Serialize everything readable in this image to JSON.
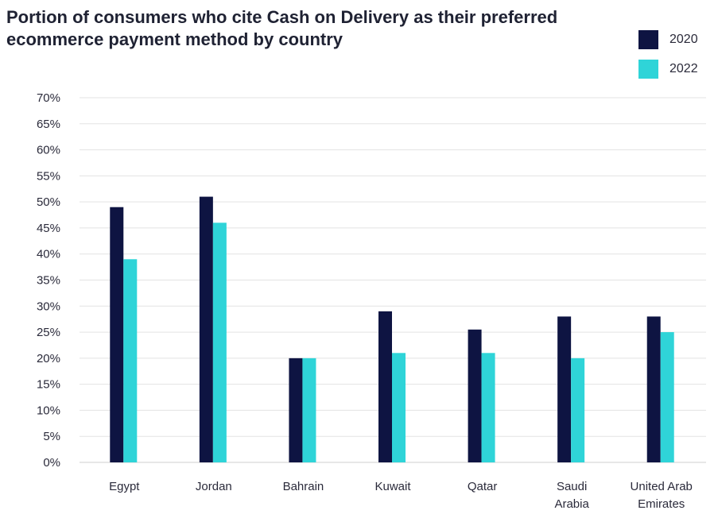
{
  "title_lines": [
    "Portion of consumers who cite Cash on Delivery as their preferred",
    "ecommerce payment method by country"
  ],
  "colors": {
    "2020": "#0e1442",
    "2022": "#2fd4d8",
    "grid": "#e3e3e3"
  },
  "chart_data": {
    "type": "bar",
    "title": "Portion of consumers who cite Cash on Delivery as their preferred ecommerce payment method by country",
    "categories": [
      "Egypt",
      "Jordan",
      "Bahrain",
      "Kuwait",
      "Qatar",
      "Saudi Arabia",
      "United Arab Emirates"
    ],
    "category_lines": [
      [
        "Egypt"
      ],
      [
        "Jordan"
      ],
      [
        "Bahrain"
      ],
      [
        "Kuwait"
      ],
      [
        "Qatar"
      ],
      [
        "Saudi",
        "Arabia"
      ],
      [
        "United Arab",
        "Emirates"
      ]
    ],
    "series": [
      {
        "name": "2020",
        "values": [
          49,
          51,
          20,
          29,
          25.5,
          28,
          28
        ]
      },
      {
        "name": "2022",
        "values": [
          39,
          46,
          20,
          21,
          21,
          20,
          25
        ]
      }
    ],
    "ylim": [
      0,
      70
    ],
    "yticks": [
      "0%",
      "5%",
      "10%",
      "15%",
      "20%",
      "25%",
      "30%",
      "35%",
      "40%",
      "45%",
      "50%",
      "55%",
      "60%",
      "65%",
      "70%"
    ],
    "xlabel": "",
    "ylabel": "",
    "grid": true,
    "legend_position": "top-right"
  }
}
